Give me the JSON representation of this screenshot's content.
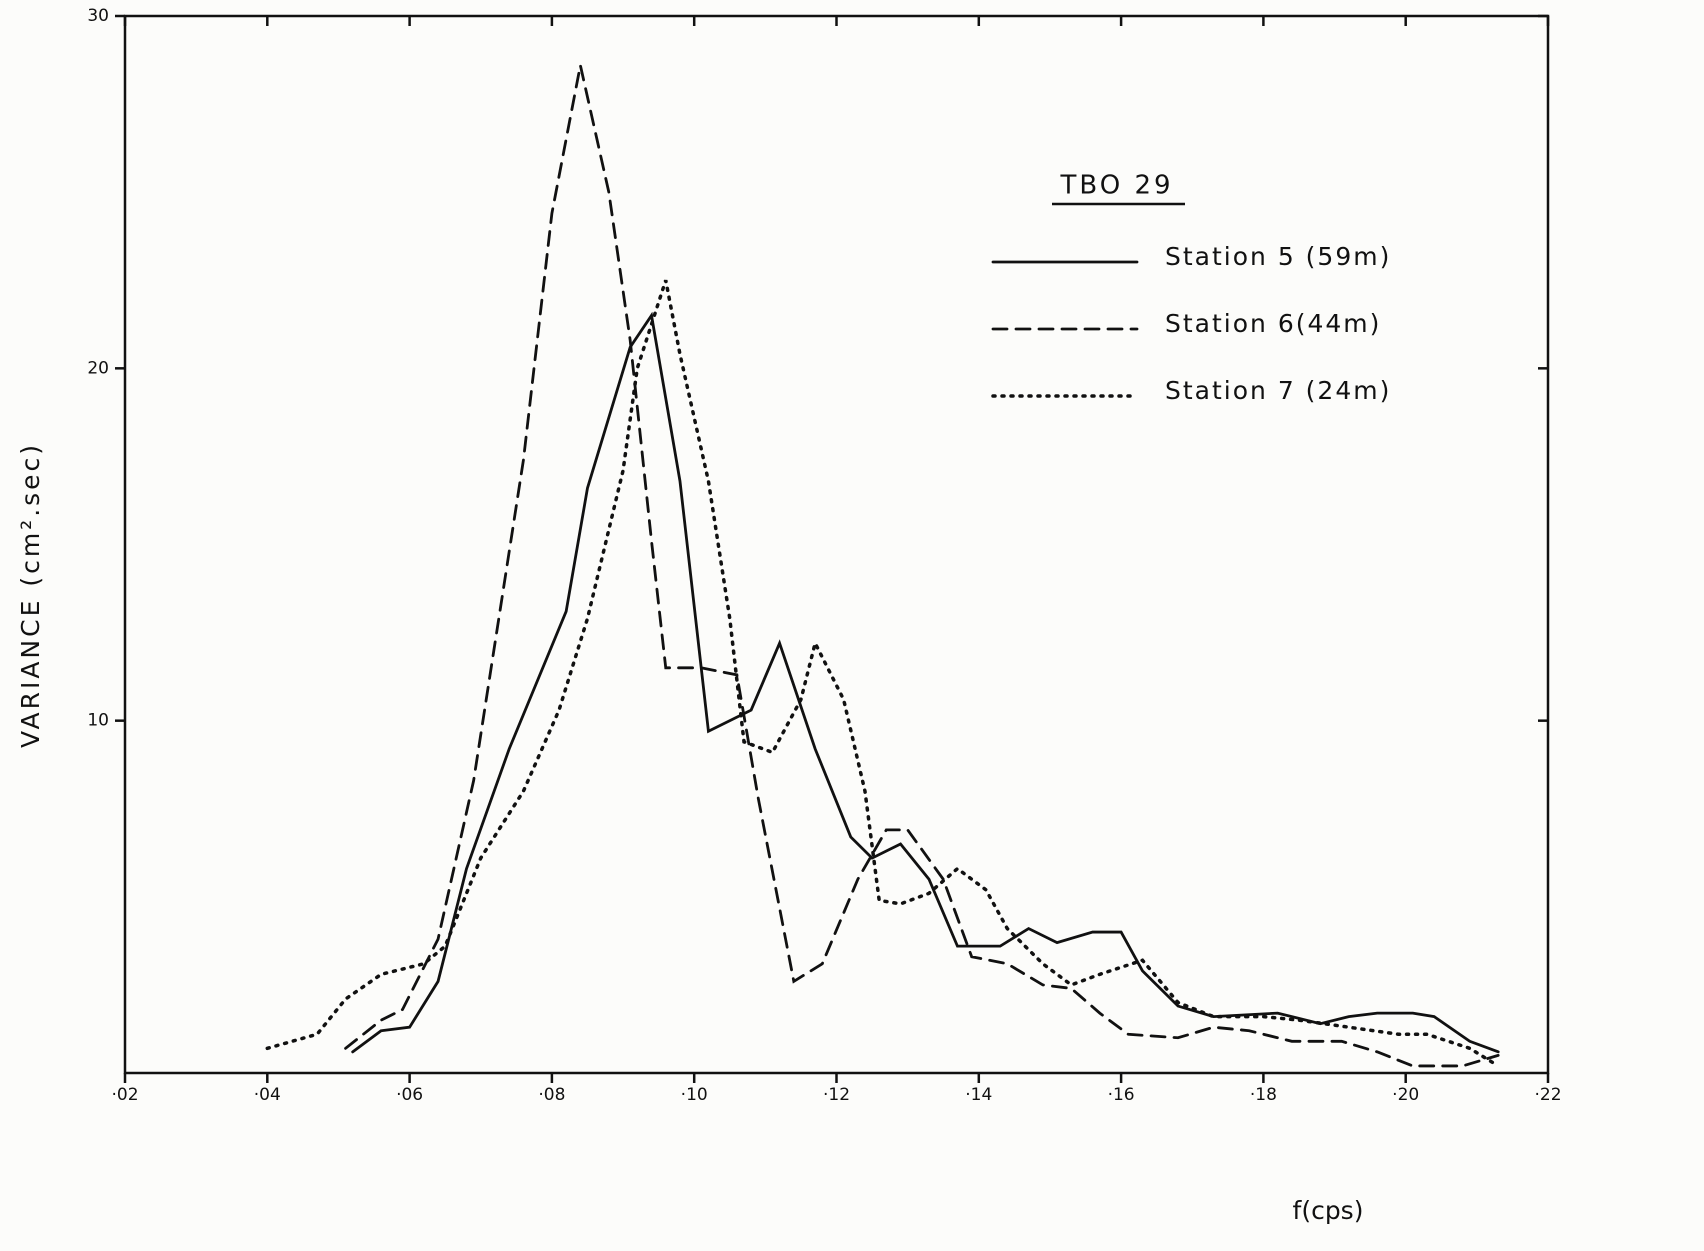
{
  "chart_data": {
    "type": "line",
    "title": "TBO 29",
    "x_label": "f(cps)",
    "y_label": "VARIANCE (cm².sec)",
    "xlim": [
      0.02,
      0.22
    ],
    "ylim": [
      0,
      30
    ],
    "xticks": [
      {
        "value": 0.02,
        "label": "·02"
      },
      {
        "value": 0.04,
        "label": "·04"
      },
      {
        "value": 0.06,
        "label": "·06"
      },
      {
        "value": 0.08,
        "label": "·08"
      },
      {
        "value": 0.1,
        "label": "·10"
      },
      {
        "value": 0.12,
        "label": "·12"
      },
      {
        "value": 0.14,
        "label": "·14"
      },
      {
        "value": 0.16,
        "label": "·16"
      },
      {
        "value": 0.18,
        "label": "·18"
      },
      {
        "value": 0.2,
        "label": "·20"
      },
      {
        "value": 0.22,
        "label": "·22"
      }
    ],
    "yticks": [
      10,
      20,
      30
    ],
    "series": [
      {
        "name": "Station 5 (59m)",
        "color": "#111111",
        "dash": "solid",
        "x": [
          0.052,
          0.056,
          0.06,
          0.064,
          0.068,
          0.074,
          0.082,
          0.085,
          0.091,
          0.094,
          0.098,
          0.102,
          0.108,
          0.112,
          0.117,
          0.122,
          0.125,
          0.129,
          0.133,
          0.137,
          0.143,
          0.147,
          0.151,
          0.156,
          0.16,
          0.163,
          0.168,
          0.173,
          0.182,
          0.188,
          0.192,
          0.196,
          0.201,
          0.204,
          0.209,
          0.213
        ],
        "values": [
          0.6,
          1.2,
          1.3,
          2.6,
          5.8,
          9.2,
          13.1,
          16.6,
          20.6,
          21.5,
          16.8,
          9.7,
          10.3,
          12.2,
          9.2,
          6.7,
          6.1,
          6.5,
          5.5,
          3.6,
          3.6,
          4.1,
          3.7,
          4.0,
          4.0,
          2.9,
          1.9,
          1.6,
          1.7,
          1.4,
          1.6,
          1.7,
          1.7,
          1.6,
          0.9,
          0.6
        ]
      },
      {
        "name": "Station 6(44m)",
        "color": "#111111",
        "dash": "dashed",
        "x": [
          0.051,
          0.056,
          0.059,
          0.064,
          0.069,
          0.076,
          0.08,
          0.084,
          0.088,
          0.091,
          0.094,
          0.096,
          0.101,
          0.106,
          0.109,
          0.114,
          0.118,
          0.123,
          0.127,
          0.13,
          0.135,
          0.139,
          0.144,
          0.149,
          0.153,
          0.157,
          0.161,
          0.168,
          0.173,
          0.178,
          0.184,
          0.191,
          0.196,
          0.201,
          0.208,
          0.213
        ],
        "values": [
          0.7,
          1.5,
          1.8,
          3.8,
          8.3,
          17.4,
          24.4,
          28.6,
          25.0,
          20.8,
          15.1,
          11.5,
          11.5,
          11.3,
          7.8,
          2.6,
          3.1,
          5.5,
          6.9,
          6.9,
          5.5,
          3.3,
          3.1,
          2.5,
          2.4,
          1.7,
          1.1,
          1.0,
          1.3,
          1.2,
          0.9,
          0.9,
          0.6,
          0.2,
          0.2,
          0.5
        ]
      },
      {
        "name": "Station 7 (24m)",
        "color": "#111111",
        "dash": "dotted",
        "x": [
          0.04,
          0.047,
          0.051,
          0.056,
          0.062,
          0.065,
          0.07,
          0.076,
          0.081,
          0.085,
          0.09,
          0.092,
          0.096,
          0.098,
          0.102,
          0.105,
          0.107,
          0.111,
          0.115,
          0.117,
          0.121,
          0.124,
          0.126,
          0.129,
          0.133,
          0.137,
          0.141,
          0.144,
          0.149,
          0.153,
          0.157,
          0.163,
          0.168,
          0.173,
          0.18,
          0.185,
          0.192,
          0.199,
          0.203,
          0.209,
          0.213
        ],
        "values": [
          0.7,
          1.1,
          2.1,
          2.8,
          3.1,
          3.6,
          6.1,
          8.0,
          10.3,
          12.9,
          17.1,
          20.0,
          22.5,
          20.4,
          16.8,
          12.9,
          9.4,
          9.1,
          10.6,
          12.2,
          10.6,
          8.0,
          4.9,
          4.8,
          5.1,
          5.8,
          5.2,
          4.1,
          3.1,
          2.5,
          2.8,
          3.2,
          2.0,
          1.6,
          1.6,
          1.5,
          1.3,
          1.1,
          1.1,
          0.7,
          0.2
        ]
      }
    ]
  }
}
